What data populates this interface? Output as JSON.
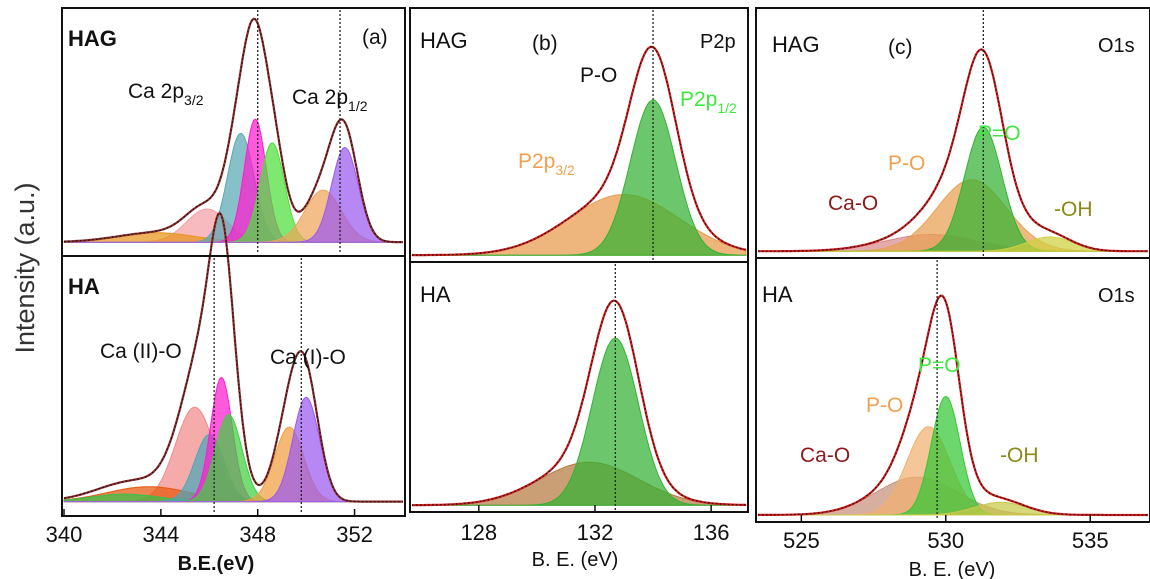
{
  "figure": {
    "ylabel": "Intensity (a.u.)"
  },
  "chart_data": [
    {
      "type": "area",
      "panel_label": "(a)",
      "xlabel": "B.E.(eV)",
      "xlim": [
        340,
        354
      ],
      "xticks": [
        "340",
        "344",
        "348",
        "352"
      ],
      "subplots": [
        {
          "sample": "HAG",
          "peak_labels": [
            {
              "main": "Ca 2p",
              "sub": "3/2",
              "color": "#111111"
            },
            {
              "main": "Ca 2p",
              "sub": "1/2",
              "color": "#111111"
            }
          ],
          "envelope": {
            "color": "#8b2b2b",
            "baseline": 0.05
          },
          "ref_lines": [
            348.0,
            351.4
          ],
          "components": [
            {
              "center": 345.9,
              "height": 0.14,
              "sigma": 0.85,
              "color": "#f3a0a6"
            },
            {
              "center": 343.8,
              "height": 0.04,
              "sigma": 1.6,
              "color": "#e8941a"
            },
            {
              "center": 347.3,
              "height": 0.46,
              "sigma": 0.55,
              "color": "#5aa8b4"
            },
            {
              "center": 347.9,
              "height": 0.52,
              "sigma": 0.45,
              "color": "#ff1ad0"
            },
            {
              "center": 348.6,
              "height": 0.42,
              "sigma": 0.5,
              "color": "#4ddf3a"
            },
            {
              "center": 350.7,
              "height": 0.22,
              "sigma": 0.75,
              "color": "#f0a55a"
            },
            {
              "center": 351.6,
              "height": 0.4,
              "sigma": 0.55,
              "color": "#9b59f0"
            }
          ]
        },
        {
          "sample": "HA",
          "peak_labels": [
            {
              "main": "Ca (II)-O",
              "sub": "",
              "color": "#111111"
            },
            {
              "main": "Ca (I)-O",
              "sub": "",
              "color": "#111111"
            }
          ],
          "envelope": {
            "color": "#8b2b2b",
            "baseline": 0.05
          },
          "ref_lines": [
            346.2,
            349.8
          ],
          "components": [
            {
              "center": 345.4,
              "height": 0.38,
              "sigma": 0.8,
              "color": "#f28a8a"
            },
            {
              "center": 343.5,
              "height": 0.06,
              "sigma": 1.7,
              "color": "#e8560c"
            },
            {
              "center": 342.5,
              "height": 0.03,
              "sigma": 1.4,
              "color": "#34c24a"
            },
            {
              "center": 346.0,
              "height": 0.27,
              "sigma": 0.6,
              "color": "#4aa8b8"
            },
            {
              "center": 346.5,
              "height": 0.5,
              "sigma": 0.45,
              "color": "#ff1ad0"
            },
            {
              "center": 346.8,
              "height": 0.35,
              "sigma": 0.55,
              "color": "#3fd13f"
            },
            {
              "center": 349.3,
              "height": 0.3,
              "sigma": 0.6,
              "color": "#f0a040"
            },
            {
              "center": 350.0,
              "height": 0.42,
              "sigma": 0.55,
              "color": "#9b59f0"
            }
          ]
        }
      ]
    },
    {
      "type": "area",
      "panel_label": "(b)",
      "xlabel": "B. E. (eV)",
      "xlim": [
        125.7,
        137.2
      ],
      "xticks": [
        "128",
        "132",
        "136"
      ],
      "subplots": [
        {
          "sample": "HAG",
          "core_level": "P2p",
          "peak_labels": [
            {
              "main": "P-O",
              "sub": "",
              "color": "#111111"
            },
            {
              "main": "P2p",
              "sub": "1/2",
              "color": "#3ee83e"
            },
            {
              "main": "P2p",
              "sub": "3/2",
              "color": "#f0a050"
            }
          ],
          "envelope": {
            "color": "#d11a1a",
            "baseline": 0.02
          },
          "ref_lines": [
            134.0
          ],
          "components": [
            {
              "center": 133.0,
              "height": 0.25,
              "sigma": 1.9,
              "color": "#e89a4a"
            },
            {
              "center": 134.0,
              "height": 0.64,
              "sigma": 0.78,
              "color": "#33b233"
            }
          ]
        },
        {
          "sample": "HA",
          "core_level": "",
          "peak_labels": [],
          "envelope": {
            "color": "#d11a1a",
            "baseline": 0.02
          },
          "ref_lines": [
            132.7
          ],
          "components": [
            {
              "center": 131.8,
              "height": 0.18,
              "sigma": 1.7,
              "color": "#b57a40"
            },
            {
              "center": 132.7,
              "height": 0.7,
              "sigma": 0.8,
              "color": "#33b233"
            }
          ]
        }
      ]
    },
    {
      "type": "area",
      "panel_label": "(c)",
      "xlabel": "B. E. (eV)",
      "xlim": [
        523.5,
        537.0
      ],
      "xticks": [
        "525",
        "530",
        "535"
      ],
      "subplots": [
        {
          "sample": "HAG",
          "core_level": "O1s",
          "peak_labels": [
            {
              "main": "P=O",
              "sub": "",
              "color": "#3ee83e"
            },
            {
              "main": "P-O",
              "sub": "",
              "color": "#f0a050"
            },
            {
              "main": "Ca-O",
              "sub": "",
              "color": "#8b1a1a"
            },
            {
              "main": "-OH",
              "sub": "",
              "color": "#8a8a1a"
            }
          ],
          "envelope": {
            "color": "#d11a1a",
            "baseline": 0.02
          },
          "ref_lines": [
            531.3
          ],
          "components": [
            {
              "center": 529.5,
              "height": 0.07,
              "sigma": 1.6,
              "color": "#d88a8a"
            },
            {
              "center": 530.9,
              "height": 0.3,
              "sigma": 1.2,
              "color": "#e8a050"
            },
            {
              "center": 531.3,
              "height": 0.52,
              "sigma": 0.65,
              "color": "#33b233"
            },
            {
              "center": 533.6,
              "height": 0.06,
              "sigma": 0.8,
              "color": "#d0d040"
            }
          ]
        },
        {
          "sample": "HA",
          "core_level": "O1s",
          "peak_labels": [
            {
              "main": "P=O",
              "sub": "",
              "color": "#3ee83e"
            },
            {
              "main": "P-O",
              "sub": "",
              "color": "#f0a050"
            },
            {
              "main": "Ca-O",
              "sub": "",
              "color": "#8b1a1a"
            },
            {
              "main": "-OH",
              "sub": "",
              "color": "#8a8a1a"
            }
          ],
          "envelope": {
            "color": "#d11a1a",
            "baseline": 0.02
          },
          "ref_lines": [
            529.7
          ],
          "components": [
            {
              "center": 529.0,
              "height": 0.15,
              "sigma": 1.4,
              "color": "#c8907c"
            },
            {
              "center": 529.4,
              "height": 0.35,
              "sigma": 0.75,
              "color": "#f0b070"
            },
            {
              "center": 530.0,
              "height": 0.47,
              "sigma": 0.5,
              "color": "#33c833"
            },
            {
              "center": 531.9,
              "height": 0.05,
              "sigma": 0.9,
              "color": "#c8c848"
            }
          ]
        }
      ]
    }
  ]
}
